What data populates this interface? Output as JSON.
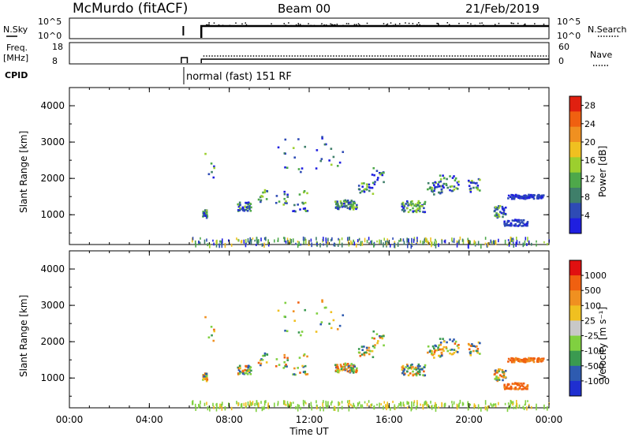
{
  "header": {
    "station": "McMurdo (fitACF)",
    "beam": "Beam 00",
    "date": "21/Feb/2019"
  },
  "noise_panel": {
    "left_label": "N.Sky",
    "right_label": "N.Search",
    "left_ticks": [
      "10^5",
      "10^0"
    ],
    "right_ticks": [
      "10^5",
      "10^0"
    ]
  },
  "freq_panel": {
    "left_label_1": "Freq.",
    "left_label_2": "[MHz]",
    "right_label": "Nave",
    "left_ticks": [
      "18",
      "8"
    ],
    "right_ticks": [
      "60",
      "0"
    ]
  },
  "cpid": {
    "label": "CPID",
    "mode_text": "normal (fast) 151 RF"
  },
  "colors": {
    "power_scale": [
      "#1f1fe0",
      "#2e4bb5",
      "#3f7f6a",
      "#4ea84a",
      "#9ccf2e",
      "#f0c020",
      "#f09020",
      "#f06010",
      "#e02010"
    ],
    "velocity_scale": [
      "#e01010",
      "#f06010",
      "#f09020",
      "#f0c020",
      "#c8c8c8",
      "#80d040",
      "#3a9a50",
      "#2e5bb0",
      "#1f2fd0"
    ]
  },
  "chart_data": [
    {
      "type": "heatmap",
      "name": "power",
      "ylabel": "Slant Range [km]",
      "ylim": [
        180,
        4500
      ],
      "yticks": [
        "1000",
        "2000",
        "3000",
        "4000"
      ],
      "colorbar_label": "Power [dB]",
      "colorbar_ticks": [
        "4",
        "8",
        "12",
        "16",
        "20",
        "24",
        "28"
      ],
      "colorbar_range": [
        0,
        30
      ]
    },
    {
      "type": "heatmap",
      "name": "velocity",
      "ylabel": "Slant Range [km]",
      "ylim": [
        180,
        4500
      ],
      "yticks": [
        "1000",
        "2000",
        "3000",
        "4000"
      ],
      "colorbar_label": "Velocity [m s⁻¹]",
      "colorbar_ticks": [
        "1000",
        "500",
        "100",
        "25",
        "-25",
        "-100",
        "-500",
        "-1000"
      ]
    }
  ],
  "time_axis": {
    "xlabel": "Time UT",
    "xticks": [
      "00:00",
      "04:00",
      "08:00",
      "12:00",
      "16:00",
      "20:00",
      "00:00"
    ],
    "xlim_hours": [
      0,
      24
    ]
  }
}
